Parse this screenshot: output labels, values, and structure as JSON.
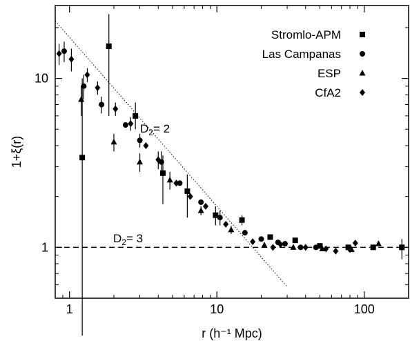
{
  "chart_data": {
    "type": "scatter",
    "title": "",
    "xlabel": "r (h⁻¹ Mpc)",
    "ylabel": "1+ξ(r)",
    "xscale": "log",
    "yscale": "log",
    "xlim": [
      0.8,
      200
    ],
    "ylim": [
      0.5,
      27
    ],
    "x_ticks": [
      1,
      10,
      100
    ],
    "x_tick_labels": [
      "1",
      "10",
      "100"
    ],
    "y_ticks": [
      1,
      10
    ],
    "y_tick_labels": [
      "1",
      "10"
    ],
    "grid": false,
    "legend_position": "top-right",
    "series": [
      {
        "name": "Stromlo-APM",
        "marker": "square",
        "points": [
          {
            "x": 1.22,
            "y": 3.4,
            "ylo": 0.3,
            "yhi": 10.0
          },
          {
            "x": 1.85,
            "y": 15.5,
            "ylo": 6.0,
            "yhi": 24.0
          },
          {
            "x": 2.8,
            "y": 6.0,
            "ylo": 5.0,
            "yhi": 7.2
          },
          {
            "x": 4.3,
            "y": 2.75,
            "ylo": 1.8,
            "yhi": 3.5
          },
          {
            "x": 6.3,
            "y": 2.15,
            "ylo": 1.5,
            "yhi": 2.7
          },
          {
            "x": 9.8,
            "y": 1.55,
            "ylo": 1.35,
            "yhi": 1.75
          },
          {
            "x": 14.8,
            "y": 1.45,
            "ylo": 1.35,
            "yhi": 1.55
          },
          {
            "x": 23,
            "y": 1.15
          },
          {
            "x": 34,
            "y": 1.1
          },
          {
            "x": 50,
            "y": 1.02
          },
          {
            "x": 78,
            "y": 1.0
          },
          {
            "x": 115,
            "y": 1.0
          },
          {
            "x": 180,
            "y": 1.0,
            "ylo": 0.85,
            "yhi": 1.12
          }
        ]
      },
      {
        "name": "Las Campanas",
        "marker": "circle",
        "points": [
          {
            "x": 0.92,
            "y": 14.5,
            "ylo": 12.5,
            "yhi": 16.5
          },
          {
            "x": 1.25,
            "y": 9.0,
            "ylo": 7.5,
            "yhi": 10.5
          },
          {
            "x": 1.65,
            "y": 7.0,
            "ylo": 6.2,
            "yhi": 7.8
          },
          {
            "x": 2.4,
            "y": 5.3
          },
          {
            "x": 3.0,
            "y": 4.3,
            "ylo": 3.9,
            "yhi": 4.7
          },
          {
            "x": 4.2,
            "y": 3.2,
            "ylo": 2.7,
            "yhi": 3.7
          },
          {
            "x": 5.6,
            "y": 2.4
          },
          {
            "x": 7.8,
            "y": 1.85
          },
          {
            "x": 10.5,
            "y": 1.5,
            "ylo": 1.35,
            "yhi": 1.65
          },
          {
            "x": 15.5,
            "y": 1.22
          },
          {
            "x": 20,
            "y": 1.12
          },
          {
            "x": 26,
            "y": 1.07
          },
          {
            "x": 29,
            "y": 1.05
          },
          {
            "x": 37,
            "y": 1.0
          },
          {
            "x": 47,
            "y": 1.0
          }
        ]
      },
      {
        "name": "ESP",
        "marker": "triangle",
        "points": [
          {
            "x": 1.2,
            "y": 7.5,
            "ylo": 6.0,
            "yhi": 9.0
          },
          {
            "x": 2.0,
            "y": 4.2,
            "ylo": 3.7,
            "yhi": 4.7
          },
          {
            "x": 3.0,
            "y": 3.2,
            "ylo": 2.8,
            "yhi": 3.6
          },
          {
            "x": 4.8,
            "y": 2.5,
            "ylo": 2.2,
            "yhi": 2.8
          },
          {
            "x": 7.8,
            "y": 1.65,
            "ylo": 1.55,
            "yhi": 1.75
          },
          {
            "x": 12.5,
            "y": 1.27,
            "ylo": 1.2,
            "yhi": 1.34
          },
          {
            "x": 21,
            "y": 1.03
          },
          {
            "x": 33,
            "y": 1.0
          },
          {
            "x": 52,
            "y": 0.98
          },
          {
            "x": 82,
            "y": 0.97
          },
          {
            "x": 125,
            "y": 1.05
          }
        ]
      },
      {
        "name": "CfA2",
        "marker": "diamond",
        "points": [
          {
            "x": 0.85,
            "y": 14.0,
            "ylo": 12.0,
            "yhi": 16.0
          },
          {
            "x": 1.03,
            "y": 13.0,
            "ylo": 11.0,
            "yhi": 15.0
          },
          {
            "x": 1.32,
            "y": 10.5,
            "ylo": 9.5,
            "yhi": 11.5
          },
          {
            "x": 1.55,
            "y": 8.8,
            "ylo": 8.0,
            "yhi": 9.6
          },
          {
            "x": 2.05,
            "y": 6.6,
            "ylo": 6.0,
            "yhi": 7.2
          },
          {
            "x": 2.6,
            "y": 5.4,
            "ylo": 4.9,
            "yhi": 5.9
          },
          {
            "x": 3.3,
            "y": 4.0
          },
          {
            "x": 4.0,
            "y": 3.3,
            "ylo": 2.9,
            "yhi": 3.7
          },
          {
            "x": 5.3,
            "y": 2.4
          },
          {
            "x": 6.6,
            "y": 2.0
          },
          {
            "x": 8.4,
            "y": 1.75
          },
          {
            "x": 11.5,
            "y": 1.37
          },
          {
            "x": 17.5,
            "y": 1.08
          },
          {
            "x": 24,
            "y": 1.0
          },
          {
            "x": 27,
            "y": 1.04
          },
          {
            "x": 40,
            "y": 1.0
          },
          {
            "x": 55,
            "y": 0.98
          },
          {
            "x": 64,
            "y": 0.95
          },
          {
            "x": 80,
            "y": 0.97
          },
          {
            "x": 87,
            "y": 1.06
          }
        ]
      }
    ],
    "reference_lines": [
      {
        "label": "D₂= 2",
        "style": "dotted",
        "slope": -1
      },
      {
        "label": "D₂= 3",
        "style": "dashed",
        "y": 1
      }
    ]
  }
}
